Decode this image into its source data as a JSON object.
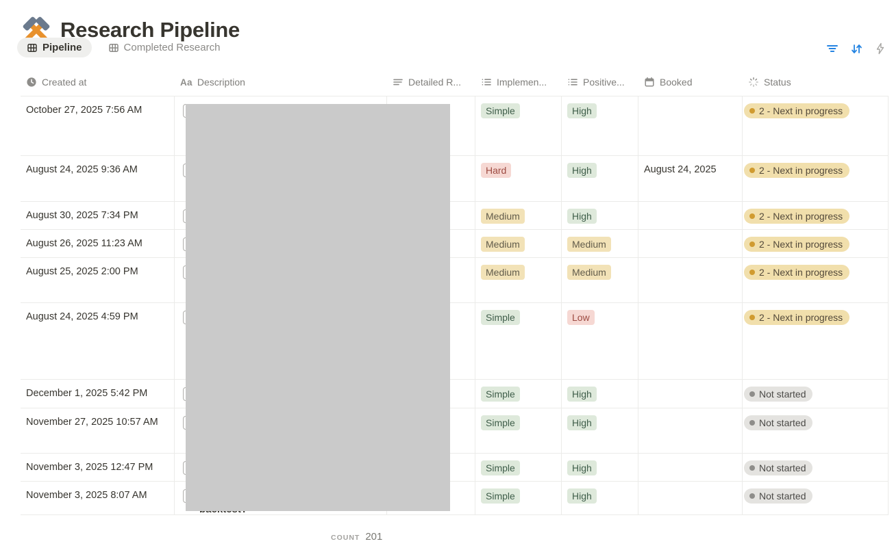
{
  "page": {
    "title": "Research Pipeline",
    "title_icon": "crossed-hammers-emoji"
  },
  "tabs": [
    {
      "label": "Pipeline",
      "active": true,
      "icon": "table-view-icon"
    },
    {
      "label": "Completed Research",
      "active": false,
      "icon": "table-view-icon"
    }
  ],
  "toolbar": {
    "icons": [
      "filter-icon",
      "sort-icon",
      "automation-lightning-icon"
    ],
    "accent_blue": "#2383E2"
  },
  "columns": [
    {
      "label": "Created at",
      "icon": "clock-icon"
    },
    {
      "label": "Description",
      "icon": "text-aa-icon"
    },
    {
      "label": "Detailed R...",
      "icon": "align-left-icon"
    },
    {
      "label": "Implemen...",
      "icon": "bulleted-list-icon"
    },
    {
      "label": "Positive...",
      "icon": "bulleted-list-icon"
    },
    {
      "label": "Booked",
      "icon": "calendar-icon"
    },
    {
      "label": "Status",
      "icon": "status-spinner-icon"
    }
  ],
  "table": {
    "rows": [
      {
        "created_at": "October 27, 2025 7:56 AM",
        "implementation": "Simple",
        "implementation_color": "green",
        "positive": "High",
        "positive_color": "green",
        "booked": "",
        "status": "2 - Next in progress",
        "status_type": "warning"
      },
      {
        "created_at": "August 24, 2025 9:36 AM",
        "implementation": "Hard",
        "implementation_color": "red",
        "positive": "High",
        "positive_color": "green",
        "booked": "August 24, 2025",
        "status": "2 - Next in progress",
        "status_type": "warning"
      },
      {
        "created_at": "August 30, 2025 7:34 PM",
        "implementation": "Medium",
        "implementation_color": "yellow",
        "positive": "High",
        "positive_color": "green",
        "booked": "",
        "status": "2 - Next in progress",
        "status_type": "warning"
      },
      {
        "created_at": "August 26, 2025 11:23 AM",
        "implementation": "Medium",
        "implementation_color": "yellow",
        "positive": "Medium",
        "positive_color": "yellow",
        "booked": "",
        "status": "2 - Next in progress",
        "status_type": "warning"
      },
      {
        "created_at": "August 25, 2025 2:00 PM",
        "implementation": "Medium",
        "implementation_color": "yellow",
        "positive": "Medium",
        "positive_color": "yellow",
        "booked": "",
        "status": "2 - Next in progress",
        "status_type": "warning"
      },
      {
        "created_at": "August 24, 2025 4:59 PM",
        "implementation": "Simple",
        "implementation_color": "green",
        "positive": "Low",
        "positive_color": "red",
        "booked": "",
        "status": "2 - Next in progress",
        "status_type": "warning"
      },
      {
        "created_at": "December 1, 2025 5:42 PM",
        "implementation": "Simple",
        "implementation_color": "green",
        "positive": "High",
        "positive_color": "green",
        "booked": "",
        "status": "Not started",
        "status_type": "default"
      },
      {
        "created_at": "November 27, 2025 10:57 AM",
        "implementation": "Simple",
        "implementation_color": "green",
        "positive": "High",
        "positive_color": "green",
        "booked": "",
        "status": "Not started",
        "status_type": "default"
      },
      {
        "created_at": "November 3, 2025 12:47 PM",
        "implementation": "Simple",
        "implementation_color": "green",
        "positive": "High",
        "positive_color": "green",
        "booked": "",
        "status": "Not started",
        "status_type": "default"
      },
      {
        "created_at": "November 3, 2025 8:07 AM",
        "implementation": "Simple",
        "implementation_color": "green",
        "positive": "High",
        "positive_color": "green",
        "booked": "",
        "status": "Not started",
        "status_type": "default"
      }
    ]
  },
  "redaction": {
    "peek_text": "backtest?"
  },
  "footer": {
    "count_label": "COUNT",
    "count_value": "201"
  },
  "colors": {
    "tag_green_bg": "#DEE9DB",
    "tag_green_text": "#3F5E4A",
    "tag_yellow_bg": "#F2E2B7",
    "tag_yellow_text": "#625C4B",
    "tag_red_bg": "#F6D8D3",
    "tag_red_text": "#9D4B42",
    "status_warning_bg": "#F1DFAC",
    "status_warning_dot": "#D09B30",
    "status_warning_text": "#53493A",
    "status_default_bg": "#E4E3E0",
    "status_default_dot": "#8E8D8A",
    "status_default_text": "#4B4A47",
    "accent_blue": "#2383E2"
  }
}
